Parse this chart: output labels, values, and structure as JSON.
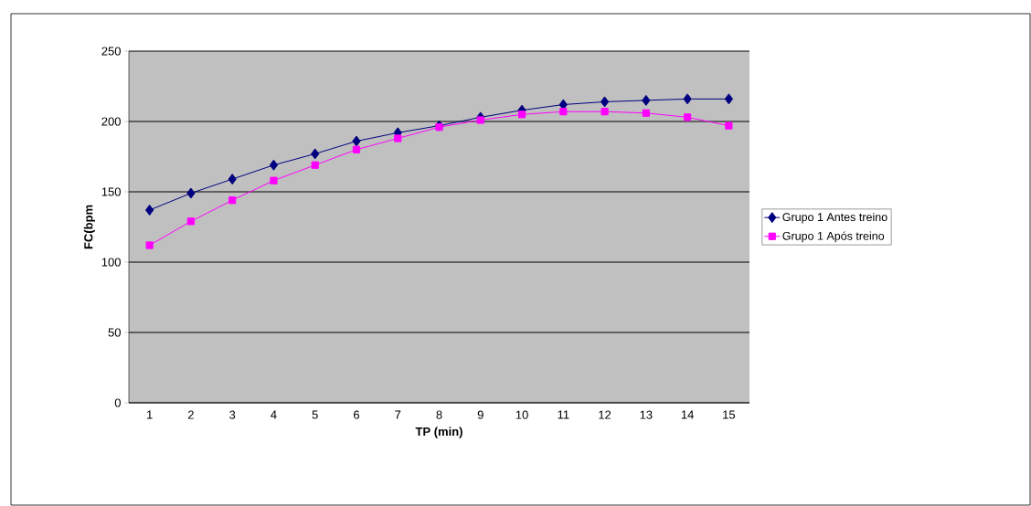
{
  "chart_data": {
    "type": "line",
    "xlabel": "TP (min)",
    "ylabel": "FC(bpm",
    "categories": [
      "1",
      "2",
      "3",
      "4",
      "5",
      "6",
      "7",
      "8",
      "9",
      "10",
      "11",
      "12",
      "13",
      "14",
      "15"
    ],
    "series": [
      {
        "name": "Grupo 1 Antes treino",
        "color": "#000080",
        "marker": "diamond",
        "values": [
          137,
          149,
          159,
          169,
          177,
          186,
          192,
          197,
          203,
          208,
          212,
          214,
          215,
          216,
          216
        ]
      },
      {
        "name": "Grupo 1 Após treino",
        "color": "#ff00ff",
        "marker": "square",
        "values": [
          112,
          129,
          144,
          158,
          169,
          180,
          188,
          196,
          201,
          205,
          207,
          207,
          206,
          203,
          197
        ]
      }
    ],
    "ylim": [
      0,
      250
    ],
    "yticks": [
      0,
      50,
      100,
      150,
      200,
      250
    ],
    "grid": "y",
    "legend": "right",
    "line_style": "solid"
  }
}
